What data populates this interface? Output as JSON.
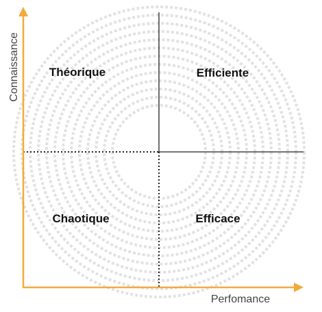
{
  "axes": {
    "y_label": "Connaissance",
    "x_label": "Perfomance"
  },
  "quadrants": {
    "top_left": "Théorique",
    "top_right": "Efficiente",
    "bottom_left": "Chaotique",
    "bottom_right": "Efficace"
  },
  "colors": {
    "axis": "#F4A93D",
    "line": "#222222",
    "rings": "#E2E2E2"
  }
}
